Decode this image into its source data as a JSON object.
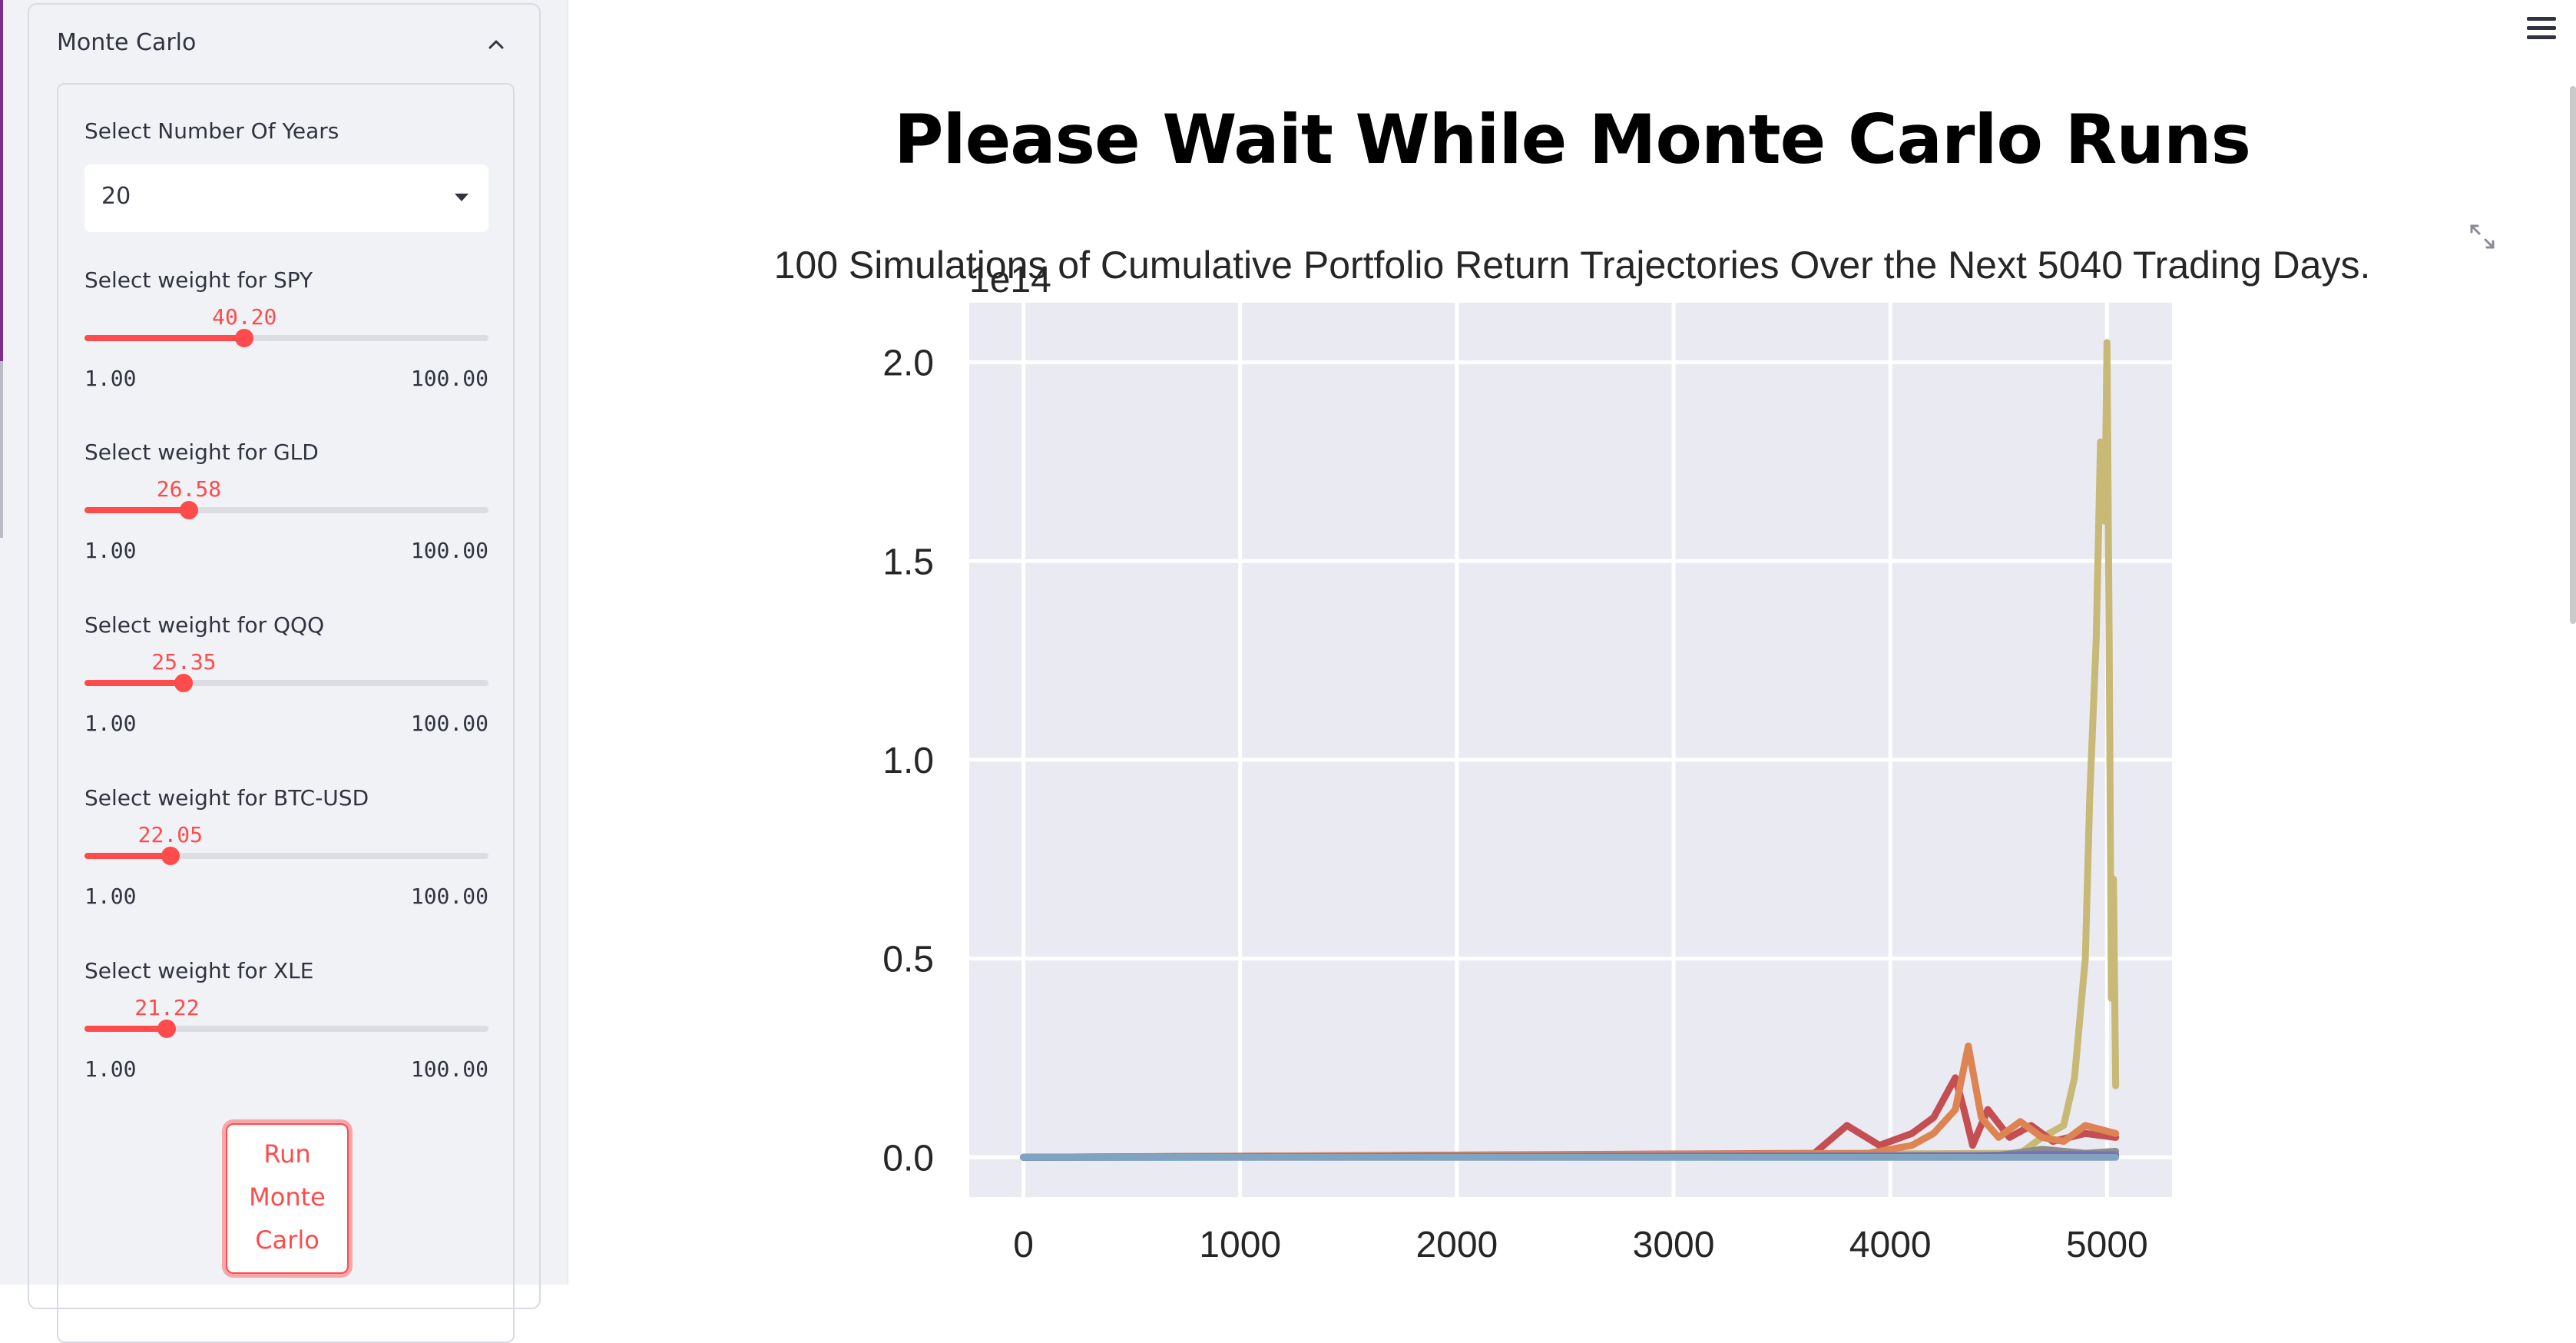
{
  "sidebar": {
    "expander_title": "Monte Carlo",
    "years_label": "Select Number Of Years",
    "years_value": "20",
    "sliders": [
      {
        "label": "Select weight for SPY",
        "value": "40.20",
        "min": "1.00",
        "max": "100.00",
        "fraction": 0.3959
      },
      {
        "label": "Select weight for GLD",
        "value": "26.58",
        "min": "1.00",
        "max": "100.00",
        "fraction": 0.2584
      },
      {
        "label": "Select weight for QQQ",
        "value": "25.35",
        "min": "1.00",
        "max": "100.00",
        "fraction": 0.246
      },
      {
        "label": "Select weight for BTC-USD",
        "value": "22.05",
        "min": "1.00",
        "max": "100.00",
        "fraction": 0.2126
      },
      {
        "label": "Select weight for XLE",
        "value": "21.22",
        "min": "1.00",
        "max": "100.00",
        "fraction": 0.2042
      }
    ],
    "run_button": [
      "Run",
      "Monte",
      "Carlo"
    ]
  },
  "main": {
    "title": "Please Wait While Monte Carlo Runs"
  },
  "icons": {
    "collapse": "chevron-up-icon",
    "select_caret": "caret-down-icon",
    "fullscreen": "fullscreen-icon",
    "menu": "hamburger-menu-icon"
  },
  "colors": {
    "accent": "#ff4b4b",
    "sidebar_bg": "#f0f2f6",
    "plot_bg": "#eaeaf2"
  },
  "chart_data": {
    "type": "line",
    "title": "100 Simulations of Cumulative Portfolio Return Trajectories Over the Next 5040 Trading Days.",
    "offset_label": "1e14",
    "xlabel": "",
    "ylabel": "",
    "xlim": [
      -250,
      5300
    ],
    "ylim": [
      -0.1,
      2.15
    ],
    "xticks": [
      0,
      1000,
      2000,
      3000,
      4000,
      5000
    ],
    "yticks": [
      0.0,
      0.5,
      1.0,
      1.5,
      2.0
    ],
    "ytick_labels": [
      "0.0",
      "0.5",
      "1.0",
      "1.5",
      "2.0"
    ],
    "grid": true,
    "series": [
      {
        "color": "#c9b976",
        "x": [
          0,
          4600,
          4700,
          4800,
          4850,
          4900,
          4920,
          4950,
          4970,
          4990,
          5000,
          5010,
          5020,
          5030,
          5040
        ],
        "y": [
          0,
          0.01,
          0.05,
          0.08,
          0.2,
          0.5,
          0.9,
          1.3,
          1.8,
          1.6,
          2.05,
          1.3,
          0.4,
          0.7,
          0.18
        ]
      },
      {
        "color": "#c44e52",
        "x": [
          0,
          3650,
          3800,
          3950,
          4100,
          4200,
          4300,
          4340,
          4380,
          4450,
          4550,
          4650,
          4750,
          4900,
          5040
        ],
        "y": [
          0,
          0.01,
          0.08,
          0.03,
          0.06,
          0.1,
          0.2,
          0.12,
          0.03,
          0.12,
          0.05,
          0.08,
          0.04,
          0.06,
          0.05
        ]
      },
      {
        "color": "#dd8452",
        "x": [
          0,
          3900,
          4100,
          4200,
          4300,
          4360,
          4420,
          4500,
          4600,
          4700,
          4800,
          4900,
          5040
        ],
        "y": [
          0,
          0.01,
          0.03,
          0.06,
          0.12,
          0.28,
          0.1,
          0.05,
          0.09,
          0.05,
          0.04,
          0.08,
          0.06
        ]
      },
      {
        "color": "#8c8c8c",
        "x": [
          0,
          4500,
          4700,
          4900,
          5040
        ],
        "y": [
          0,
          0.005,
          0.02,
          0.01,
          0.015
        ]
      },
      {
        "color": "#8172b3",
        "x": [
          0,
          4400,
          4700,
          5040
        ],
        "y": [
          0,
          0.004,
          0.008,
          0.006
        ]
      },
      {
        "color": "#4c72b0",
        "x": [
          0,
          5040
        ],
        "y": [
          0,
          0.002
        ]
      },
      {
        "color": "#7fa3c0",
        "x": [
          0,
          5040
        ],
        "y": [
          0,
          0
        ]
      }
    ]
  }
}
